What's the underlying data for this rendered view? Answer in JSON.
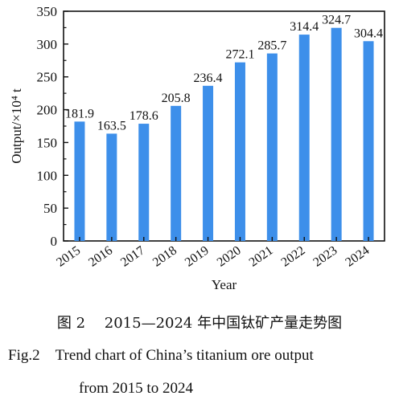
{
  "chart_data": {
    "type": "bar",
    "categories": [
      "2015",
      "2016",
      "2017",
      "2018",
      "2019",
      "2020",
      "2021",
      "2022",
      "2023",
      "2024"
    ],
    "values": [
      181.9,
      163.5,
      178.6,
      205.8,
      236.4,
      272.1,
      285.7,
      314.4,
      324.7,
      304.4
    ],
    "data_labels": [
      "181.9",
      "163.5",
      "178.6",
      "205.8",
      "236.4",
      "272.1",
      "285.7",
      "314.4",
      "324.7",
      "304.4"
    ],
    "xlabel": "Year",
    "ylabel": "Output/×10⁴ t",
    "ylim": [
      0,
      350
    ],
    "yticks": [
      0,
      50,
      100,
      150,
      200,
      250,
      300,
      350
    ],
    "grid": false,
    "bar_color": "#3d8fea"
  },
  "caption": {
    "zh": "图 2　 2015—2024 年中国钛矿产量走势图",
    "en_line1": "Fig.2 Trend chart of China’s titanium ore output",
    "en_line2": "from 2015 to 2024"
  }
}
